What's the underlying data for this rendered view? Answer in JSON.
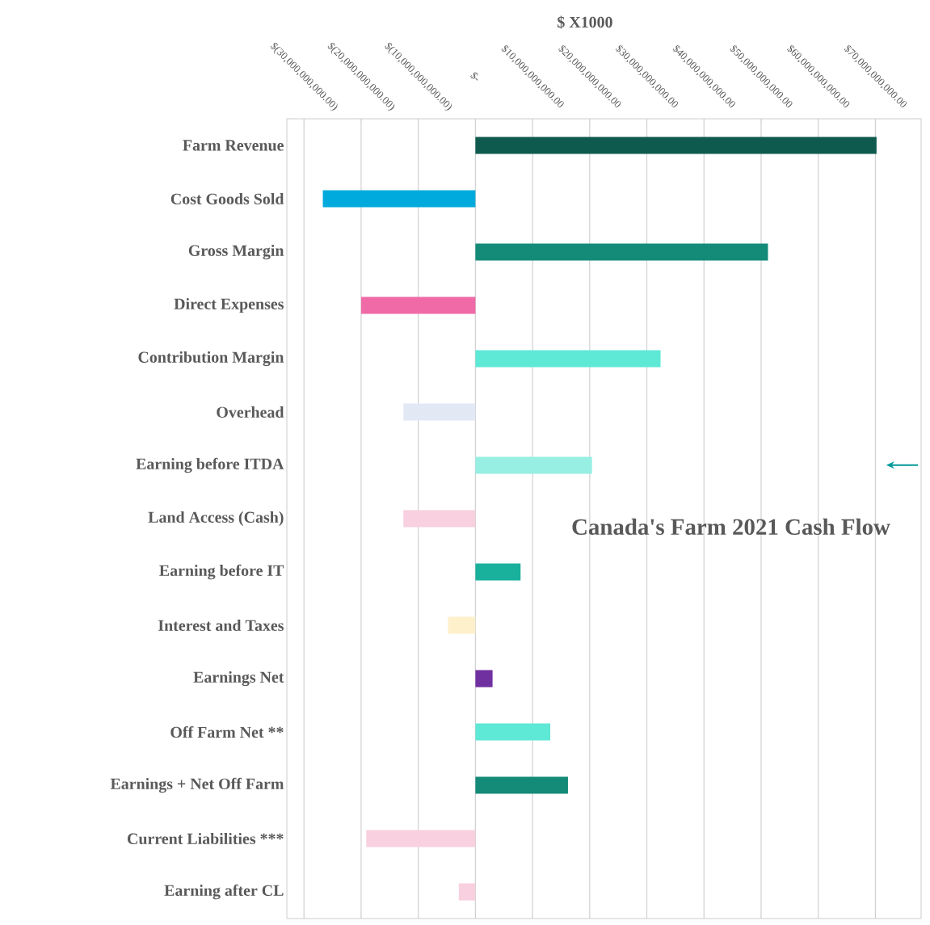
{
  "chart_data": {
    "type": "bar",
    "orientation": "horizontal",
    "title": "Canada's Farm 2021 Cash Flow",
    "xlabel": "$ X1000",
    "categories": [
      "Farm Revenue",
      "Cost Goods Sold",
      "Gross Margin",
      "Direct Expenses",
      "Contribution Margin",
      "Overhead",
      "Earning before ITDA",
      "Land Access (Cash)",
      "Earning before IT",
      "Interest and Taxes",
      "Earnings Net",
      "Off Farm Net **",
      "Earnings + Net Off Farm",
      "Current Liabilities ***",
      "Earning after CL"
    ],
    "values": [
      70200000000,
      -26700000000,
      51200000000,
      -20000000000,
      32400000000,
      -12600000000,
      20400000000,
      -12600000000,
      7900000000,
      -4800000000,
      3000000000,
      13100000000,
      16200000000,
      -19100000000,
      -2900000000
    ],
    "colors": [
      "#0f5a4e",
      "#00aadc",
      "#148a78",
      "#f06aa8",
      "#5ee8d6",
      "#e2e8f4",
      "#96efe2",
      "#f8d0e0",
      "#19b09c",
      "#fff0cc",
      "#7030a0",
      "#5ee8d6",
      "#148a78",
      "#f8d0e0",
      "#f8d0e0"
    ],
    "xlim": [
      -33000000000,
      78000000000
    ],
    "xticks": [
      {
        "value": -30000000000,
        "label": "$(30,000,000,000.00)"
      },
      {
        "value": -20000000000,
        "label": "$(20,000,000,000.00)"
      },
      {
        "value": -10000000000,
        "label": "$(10,000,000,000.00)"
      },
      {
        "value": 0,
        "label": "$-"
      },
      {
        "value": 10000000000,
        "label": "$10,000,000,000.00"
      },
      {
        "value": 20000000000,
        "label": "$20,000,000,000.00"
      },
      {
        "value": 30000000000,
        "label": "$30,000,000,000.00"
      },
      {
        "value": 40000000000,
        "label": "$40,000,000,000.00"
      },
      {
        "value": 50000000000,
        "label": "$50,000,000,000.00"
      },
      {
        "value": 60000000000,
        "label": "$60,000,000,000.00"
      },
      {
        "value": 70000000000,
        "label": "$70,000,000,000.00"
      }
    ],
    "grid": "x"
  }
}
